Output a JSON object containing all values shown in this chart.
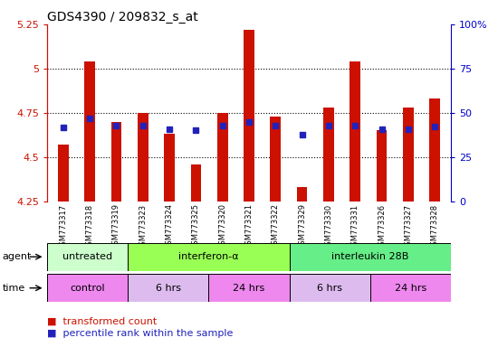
{
  "title": "GDS4390 / 209832_s_at",
  "samples": [
    "GSM773317",
    "GSM773318",
    "GSM773319",
    "GSM773323",
    "GSM773324",
    "GSM773325",
    "GSM773320",
    "GSM773321",
    "GSM773322",
    "GSM773329",
    "GSM773330",
    "GSM773331",
    "GSM773326",
    "GSM773327",
    "GSM773328"
  ],
  "transformed_count": [
    4.57,
    5.04,
    4.7,
    4.75,
    4.63,
    4.46,
    4.75,
    5.22,
    4.73,
    4.33,
    4.78,
    5.04,
    4.65,
    4.78,
    4.83
  ],
  "percentile_rank_y": [
    4.665,
    4.72,
    4.68,
    4.68,
    4.655,
    4.65,
    4.68,
    4.7,
    4.678,
    4.625,
    4.675,
    4.678,
    4.655,
    4.655,
    4.673
  ],
  "ylim": [
    4.25,
    5.25
  ],
  "yticks": [
    4.25,
    4.5,
    4.75,
    5.0,
    5.25
  ],
  "ytick_labels_left": [
    "4.25",
    "4.5",
    "4.75",
    "5",
    "5.25"
  ],
  "right_ytick_pcts": [
    0,
    25,
    50,
    75,
    100
  ],
  "right_ytick_labels": [
    "0",
    "25",
    "50",
    "75",
    "100%"
  ],
  "bar_color": "#cc1100",
  "dot_color": "#2222bb",
  "agent_groups": [
    {
      "label": "untreated",
      "start": 0,
      "end": 3,
      "color": "#ccffcc"
    },
    {
      "label": "interferon-α",
      "start": 3,
      "end": 9,
      "color": "#99ff55"
    },
    {
      "label": "interleukin 28B",
      "start": 9,
      "end": 15,
      "color": "#66ee88"
    }
  ],
  "time_groups": [
    {
      "label": "control",
      "start": 0,
      "end": 3,
      "color": "#ee88ee"
    },
    {
      "label": "6 hrs",
      "start": 3,
      "end": 6,
      "color": "#ddbbee"
    },
    {
      "label": "24 hrs",
      "start": 6,
      "end": 9,
      "color": "#ee88ee"
    },
    {
      "label": "6 hrs",
      "start": 9,
      "end": 12,
      "color": "#ddbbee"
    },
    {
      "label": "24 hrs",
      "start": 12,
      "end": 15,
      "color": "#ee88ee"
    }
  ],
  "left_axis_color": "#cc1100",
  "right_axis_color": "#0000cc",
  "bar_width": 0.4
}
